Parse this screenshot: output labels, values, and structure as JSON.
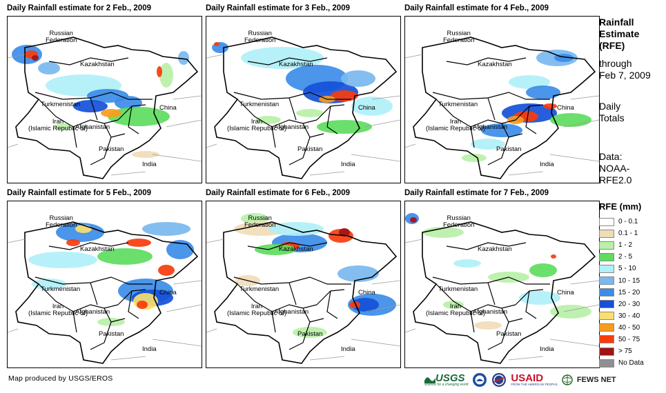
{
  "panels": [
    {
      "title": "Daily Rainfall estimate for 2 Feb., 2009"
    },
    {
      "title": "Daily Rainfall estimate for 3 Feb., 2009"
    },
    {
      "title": "Daily Rainfall estimate for 4 Feb., 2009"
    },
    {
      "title": "Daily Rainfall estimate for 5 Feb., 2009"
    },
    {
      "title": "Daily Rainfall estimate for 6 Feb., 2009"
    },
    {
      "title": "Daily Rainfall estimate for 7 Feb., 2009"
    }
  ],
  "map_labels": {
    "russia": "Russian\nFederation",
    "kazakhstan": "Kazakhstan",
    "turkmenistan": "Turkmenistan",
    "iran": "Iran\n(Islamic Republic of)",
    "afghanistan": "Afghanistan",
    "pakistan": "Pakistan",
    "china": "China",
    "india": "India"
  },
  "side": {
    "title": "Rainfall\nEstimate\n(RFE)",
    "through": "through\nFeb 7, 2009",
    "daily": "Daily\nTotals",
    "data": "Data:\nNOAA-\nRFE2.0"
  },
  "legend": {
    "title": "RFE (mm)",
    "items": [
      {
        "label": "0 - 0.1",
        "color": "#ffffff"
      },
      {
        "label": "0.1 - 1",
        "color": "#f0dcb8"
      },
      {
        "label": "1 - 2",
        "color": "#b8f0a8"
      },
      {
        "label": "2 - 5",
        "color": "#5edc5e"
      },
      {
        "label": "5 - 10",
        "color": "#b0f0f8"
      },
      {
        "label": "10 - 15",
        "color": "#7ab8f0"
      },
      {
        "label": "15 - 20",
        "color": "#3c8ce8"
      },
      {
        "label": "20 - 30",
        "color": "#1450d8"
      },
      {
        "label": "30 - 40",
        "color": "#f8e070"
      },
      {
        "label": "40 - 50",
        "color": "#f89c1c"
      },
      {
        "label": "50 - 75",
        "color": "#f83c0c"
      },
      {
        "label": "> 75",
        "color": "#a01414"
      },
      {
        "label": "No Data",
        "color": "#909090"
      }
    ]
  },
  "credit": "Map produced by USGS/EROS",
  "logos": {
    "usgs": "USGS",
    "usgs_tagline": "science for a changing world",
    "usaid": "USAID",
    "usaid_tagline": "FROM THE AMERICAN PEOPLE",
    "fewsnet": "FEWS NET"
  }
}
